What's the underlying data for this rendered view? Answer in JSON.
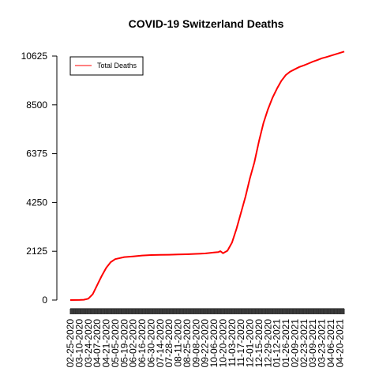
{
  "chart_data": {
    "type": "line",
    "title": "COVID-19 Switzerland Deaths",
    "xlabel": "",
    "ylabel": "",
    "ylim": [
      0,
      10625
    ],
    "y_ticks": [
      0,
      2125,
      4250,
      6375,
      8500,
      10625
    ],
    "legend": {
      "position": "top-left",
      "entries": [
        "Total Deaths"
      ]
    },
    "grid": false,
    "x_tick_labels": [
      "02-25-2020",
      "03-10-2020",
      "03-24-2020",
      "04-07-2020",
      "04-21-2020",
      "05-05-2020",
      "05-19-2020",
      "06-02-2020",
      "06-16-2020",
      "06-30-2020",
      "07-14-2020",
      "07-28-2020",
      "08-11-2020",
      "08-25-2020",
      "09-08-2020",
      "09-22-2020",
      "10-06-2020",
      "10-20-2020",
      "11-03-2020",
      "11-17-2020",
      "12-01-2020",
      "12-15-2020",
      "12-29-2020",
      "01-12-2021",
      "01-26-2021",
      "02-09-2021",
      "02-23-2021",
      "03-09-2021",
      "03-23-2021",
      "04-06-2021",
      "04-20-2021"
    ],
    "series": [
      {
        "name": "Total Deaths",
        "color": "#ff0000",
        "x": [
          "02-25-2020",
          "03-10-2020",
          "03-17-2020",
          "03-24-2020",
          "03-31-2020",
          "04-07-2020",
          "04-14-2020",
          "04-21-2020",
          "04-28-2020",
          "05-05-2020",
          "05-19-2020",
          "06-02-2020",
          "06-16-2020",
          "06-30-2020",
          "07-14-2020",
          "07-28-2020",
          "08-11-2020",
          "08-25-2020",
          "09-08-2020",
          "09-22-2020",
          "10-06-2020",
          "10-13-2020",
          "10-16-2020",
          "10-20-2020",
          "10-27-2020",
          "11-03-2020",
          "11-10-2020",
          "11-17-2020",
          "11-24-2020",
          "12-01-2020",
          "12-08-2020",
          "12-15-2020",
          "12-22-2020",
          "12-29-2020",
          "01-05-2021",
          "01-12-2021",
          "01-19-2021",
          "01-26-2021",
          "02-02-2021",
          "02-09-2021",
          "02-16-2021",
          "02-23-2021",
          "03-02-2021",
          "03-09-2021",
          "03-16-2021",
          "03-23-2021",
          "03-30-2021",
          "04-06-2021",
          "04-13-2021",
          "04-20-2021",
          "04-27-2021"
        ],
        "values": [
          0,
          5,
          15,
          60,
          250,
          650,
          1050,
          1400,
          1650,
          1780,
          1870,
          1900,
          1940,
          1960,
          1970,
          1975,
          1985,
          1995,
          2010,
          2030,
          2070,
          2090,
          2130,
          2040,
          2150,
          2500,
          3100,
          3800,
          4500,
          5300,
          6000,
          6900,
          7700,
          8300,
          8800,
          9200,
          9550,
          9800,
          9950,
          10050,
          10150,
          10220,
          10300,
          10380,
          10450,
          10530,
          10580,
          10640,
          10700,
          10760,
          10820
        ]
      }
    ]
  }
}
